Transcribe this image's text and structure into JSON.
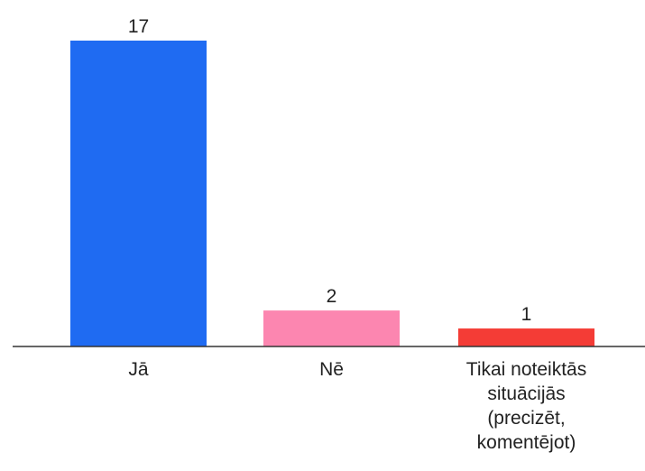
{
  "chart_data": {
    "type": "bar",
    "categories": [
      [
        "Jā"
      ],
      [
        "Nē"
      ],
      [
        "Tikai noteiktās",
        "situācijās",
        "(precizēt,",
        "komentējot)"
      ]
    ],
    "values": [
      17,
      2,
      1
    ],
    "colors": [
      "#1f6bf2",
      "#fc86b0",
      "#f43c36"
    ],
    "ylim": [
      0,
      17
    ],
    "grid": false,
    "legend": "none",
    "data_labels": true
  }
}
